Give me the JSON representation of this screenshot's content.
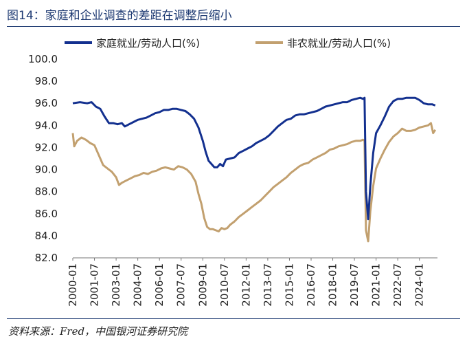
{
  "title": "图14：家庭和企业调查的差距在调整后缩小",
  "source": "资料来源：Fred，中国银河证券研究院",
  "chart_data": {
    "type": "line",
    "title": "家庭和企业调查的差距在调整后缩小",
    "xlabel": "",
    "ylabel": "",
    "ylim": [
      82.0,
      100.0
    ],
    "yticks": [
      "82.0",
      "84.0",
      "86.0",
      "88.0",
      "90.0",
      "92.0",
      "94.0",
      "96.0",
      "98.0",
      "100.0"
    ],
    "xticks": [
      "2000-01",
      "2001-07",
      "2003-01",
      "2004-07",
      "2006-01",
      "2007-07",
      "2009-01",
      "2010-07",
      "2012-01",
      "2013-07",
      "2015-01",
      "2016-07",
      "2018-01",
      "2019-07",
      "2021-01",
      "2022-07",
      "2024-01"
    ],
    "x_range": [
      2000.0,
      2025.25
    ],
    "legend_position": "top",
    "series": [
      {
        "name": "家庭就业/劳动人口(%)",
        "color": "#13308f",
        "x": [
          2000.0,
          2000.5,
          2001.0,
          2001.3,
          2001.6,
          2001.9,
          2002.2,
          2002.5,
          2002.8,
          2003.1,
          2003.4,
          2003.6,
          2003.9,
          2004.2,
          2004.5,
          2004.8,
          2005.1,
          2005.4,
          2005.7,
          2006.0,
          2006.3,
          2006.6,
          2006.9,
          2007.2,
          2007.5,
          2007.8,
          2008.1,
          2008.4,
          2008.7,
          2009.0,
          2009.2,
          2009.4,
          2009.6,
          2009.8,
          2010.0,
          2010.2,
          2010.4,
          2010.6,
          2010.9,
          2011.2,
          2011.5,
          2011.8,
          2012.1,
          2012.4,
          2012.7,
          2013.0,
          2013.3,
          2013.6,
          2013.9,
          2014.2,
          2014.5,
          2014.8,
          2015.1,
          2015.4,
          2015.7,
          2016.0,
          2016.3,
          2016.6,
          2016.9,
          2017.2,
          2017.5,
          2017.8,
          2018.1,
          2018.4,
          2018.7,
          2019.0,
          2019.3,
          2019.6,
          2019.9,
          2020.1,
          2020.2,
          2020.3,
          2020.45,
          2020.6,
          2020.8,
          2021.0,
          2021.3,
          2021.6,
          2021.9,
          2022.2,
          2022.5,
          2022.8,
          2023.1,
          2023.4,
          2023.7,
          2024.0,
          2024.3,
          2024.6,
          2024.9,
          2025.1
        ],
        "values": [
          96.0,
          96.1,
          96.0,
          96.1,
          95.7,
          95.5,
          94.8,
          94.2,
          94.2,
          94.1,
          94.2,
          93.9,
          94.1,
          94.3,
          94.5,
          94.6,
          94.7,
          94.9,
          95.1,
          95.2,
          95.4,
          95.4,
          95.5,
          95.5,
          95.4,
          95.3,
          95.0,
          94.6,
          93.8,
          92.6,
          91.6,
          90.8,
          90.5,
          90.2,
          90.2,
          90.5,
          90.3,
          90.9,
          91.0,
          91.1,
          91.5,
          91.7,
          91.9,
          92.1,
          92.4,
          92.6,
          92.8,
          93.1,
          93.5,
          93.9,
          94.2,
          94.5,
          94.6,
          94.9,
          95.0,
          95.0,
          95.1,
          95.2,
          95.3,
          95.5,
          95.7,
          95.8,
          95.9,
          96.0,
          96.1,
          96.1,
          96.3,
          96.4,
          96.5,
          96.4,
          96.5,
          88.0,
          85.5,
          88.5,
          91.5,
          93.3,
          94.0,
          94.8,
          95.7,
          96.2,
          96.4,
          96.4,
          96.5,
          96.5,
          96.5,
          96.3,
          96.0,
          95.9,
          95.9,
          95.8
        ]
      },
      {
        "name": "非农就业/劳动人口(%)",
        "color": "#c2a06f",
        "x": [
          2000.0,
          2000.1,
          2000.3,
          2000.6,
          2000.9,
          2001.2,
          2001.5,
          2001.8,
          2002.1,
          2002.4,
          2002.7,
          2003.0,
          2003.2,
          2003.4,
          2003.7,
          2004.0,
          2004.3,
          2004.6,
          2004.9,
          2005.2,
          2005.5,
          2005.8,
          2006.1,
          2006.4,
          2006.7,
          2007.0,
          2007.3,
          2007.6,
          2007.9,
          2008.2,
          2008.5,
          2008.7,
          2008.9,
          2009.1,
          2009.3,
          2009.5,
          2009.7,
          2009.9,
          2010.1,
          2010.3,
          2010.5,
          2010.7,
          2010.9,
          2011.2,
          2011.5,
          2011.8,
          2012.1,
          2012.4,
          2012.7,
          2013.0,
          2013.3,
          2013.6,
          2013.9,
          2014.2,
          2014.5,
          2014.8,
          2015.1,
          2015.4,
          2015.7,
          2016.0,
          2016.3,
          2016.6,
          2016.9,
          2017.2,
          2017.5,
          2017.8,
          2018.1,
          2018.4,
          2018.7,
          2019.0,
          2019.3,
          2019.6,
          2019.9,
          2020.1,
          2020.2,
          2020.3,
          2020.45,
          2020.6,
          2020.8,
          2021.0,
          2021.3,
          2021.6,
          2021.9,
          2022.2,
          2022.5,
          2022.8,
          2023.1,
          2023.4,
          2023.7,
          2024.0,
          2024.3,
          2024.6,
          2024.8,
          2024.95,
          2025.1
        ],
        "values": [
          93.3,
          92.1,
          92.6,
          92.9,
          92.7,
          92.4,
          92.2,
          91.3,
          90.4,
          90.1,
          89.8,
          89.3,
          88.6,
          88.8,
          89.0,
          89.2,
          89.4,
          89.5,
          89.7,
          89.6,
          89.8,
          89.9,
          90.1,
          90.2,
          90.1,
          90.0,
          90.3,
          90.2,
          90.0,
          89.6,
          88.9,
          87.8,
          86.9,
          85.6,
          84.8,
          84.6,
          84.6,
          84.5,
          84.4,
          84.7,
          84.6,
          84.7,
          85.0,
          85.3,
          85.7,
          86.0,
          86.3,
          86.6,
          86.9,
          87.2,
          87.6,
          88.0,
          88.4,
          88.7,
          89.0,
          89.3,
          89.7,
          90.0,
          90.3,
          90.5,
          90.6,
          90.9,
          91.1,
          91.3,
          91.5,
          91.8,
          91.9,
          92.1,
          92.2,
          92.3,
          92.5,
          92.6,
          92.6,
          92.7,
          92.6,
          84.5,
          83.5,
          86.2,
          88.5,
          90.1,
          91.0,
          91.8,
          92.5,
          93.0,
          93.3,
          93.7,
          93.5,
          93.5,
          93.6,
          93.8,
          93.9,
          94.0,
          94.2,
          93.3,
          93.6
        ]
      }
    ]
  }
}
